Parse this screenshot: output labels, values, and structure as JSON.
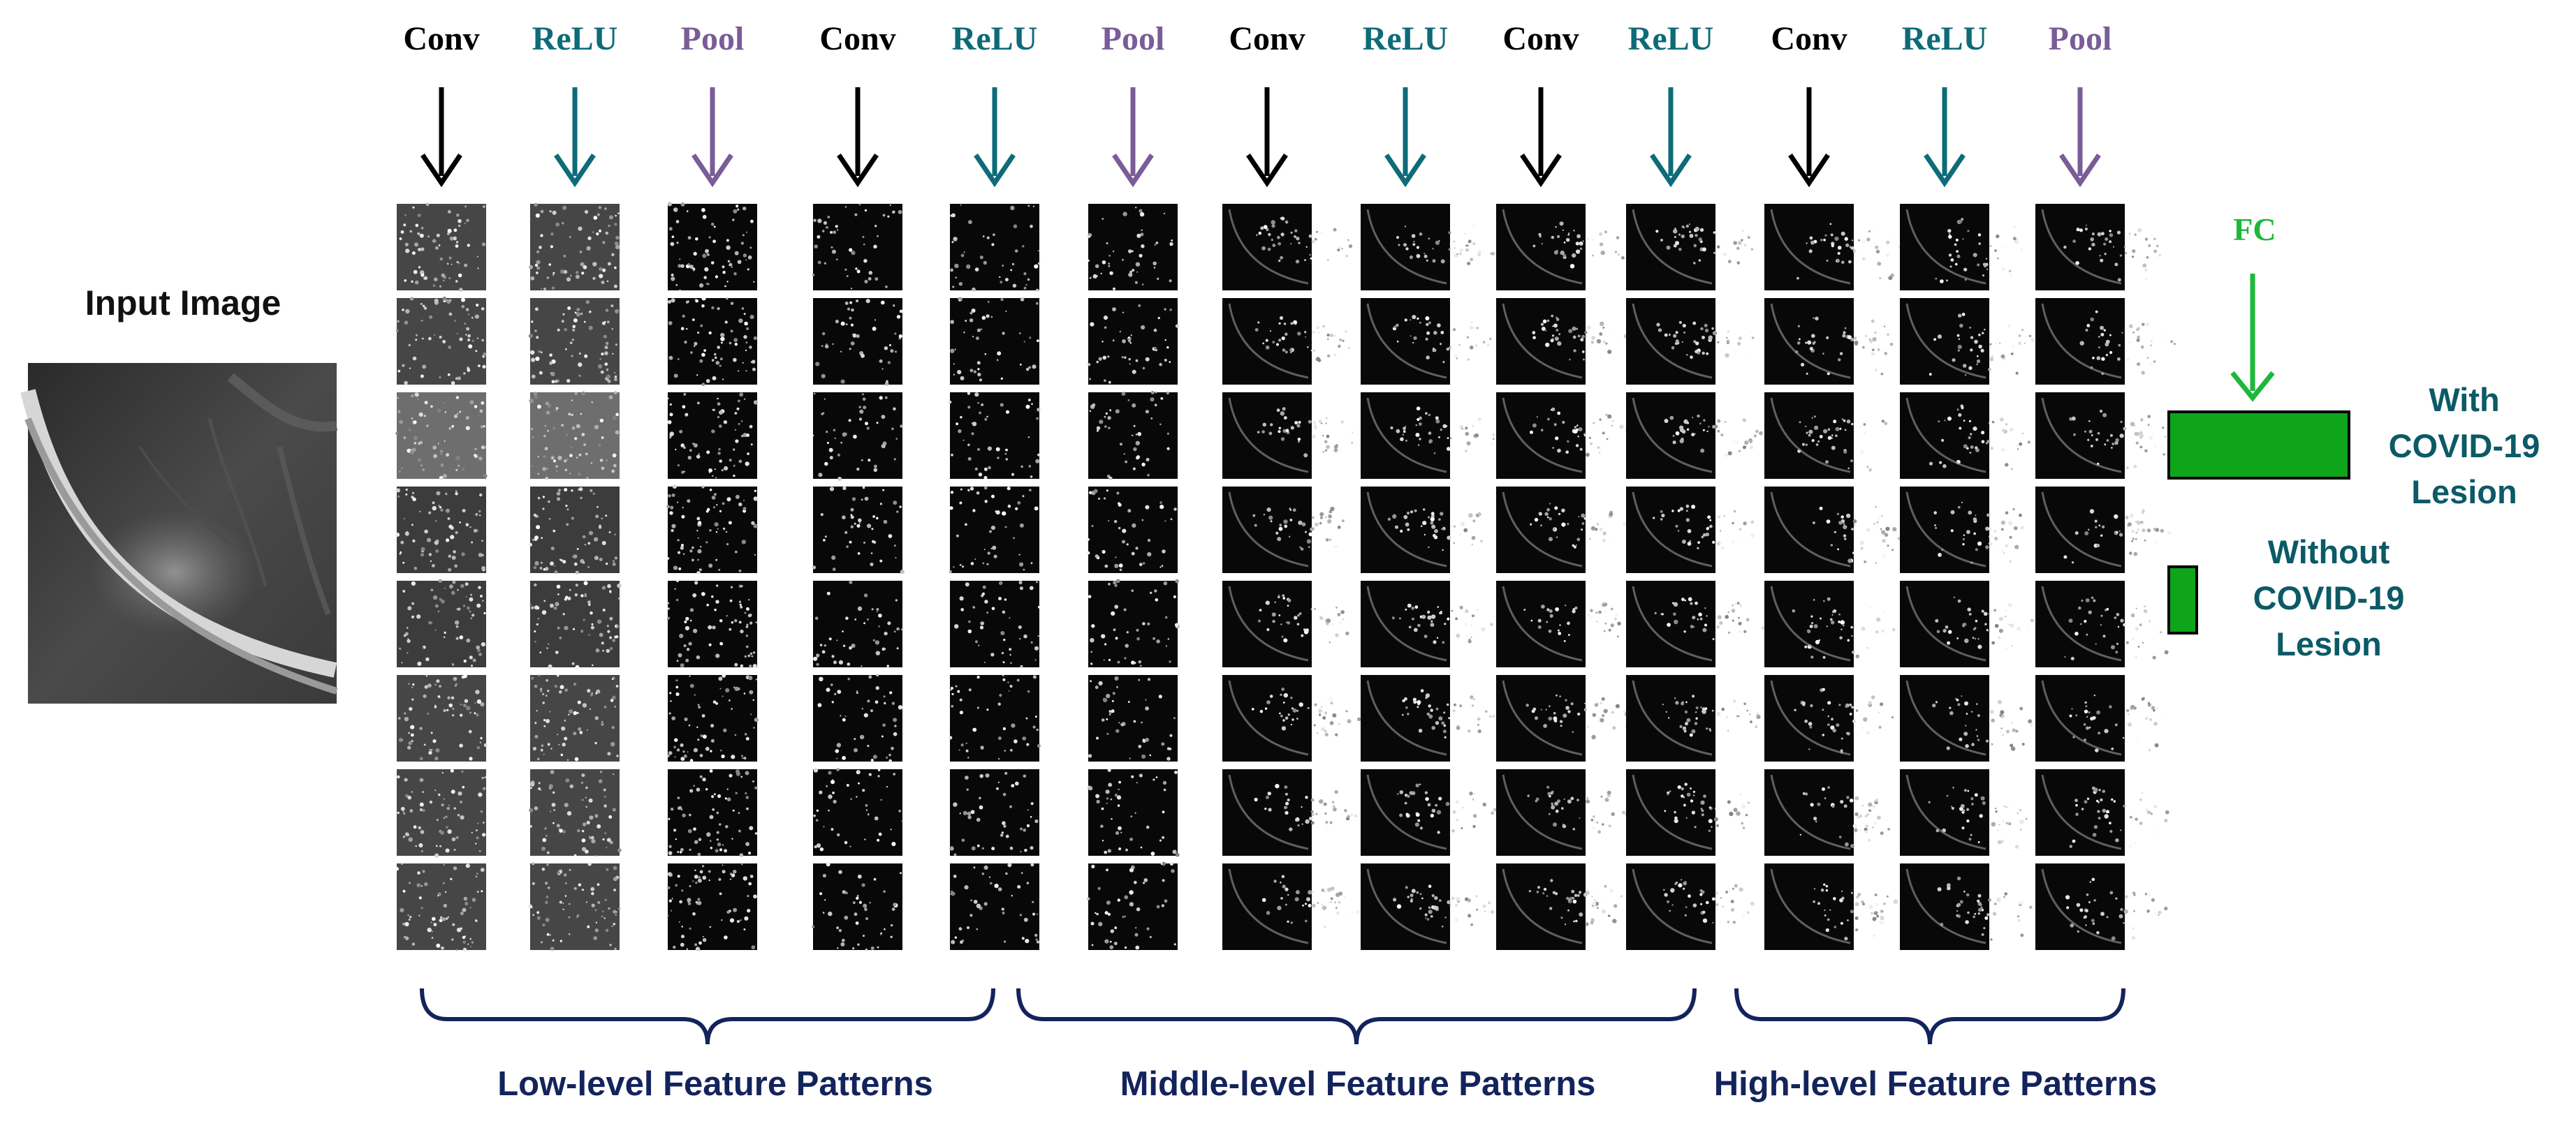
{
  "input": {
    "label": "Input Image"
  },
  "colors": {
    "conv": "#000000",
    "relu": "#0e6b78",
    "pool": "#7a5c99",
    "fc": "#1db83a",
    "navy": "#13235c",
    "teal_text": "#0b5a66",
    "bar_fill": "#0ea51a"
  },
  "layers": [
    {
      "type": "conv",
      "label": "Conv"
    },
    {
      "type": "relu",
      "label": "ReLU"
    },
    {
      "type": "pool",
      "label": "Pool"
    },
    {
      "type": "conv",
      "label": "Conv"
    },
    {
      "type": "relu",
      "label": "ReLU"
    },
    {
      "type": "pool",
      "label": "Pool"
    },
    {
      "type": "conv",
      "label": "Conv"
    },
    {
      "type": "relu",
      "label": "ReLU"
    },
    {
      "type": "conv",
      "label": "Conv"
    },
    {
      "type": "relu",
      "label": "ReLU"
    },
    {
      "type": "conv",
      "label": "Conv"
    },
    {
      "type": "relu",
      "label": "ReLU"
    },
    {
      "type": "pool",
      "label": "Pool"
    }
  ],
  "groups": [
    {
      "label": "Low-level Feature Patterns"
    },
    {
      "label": "Middle-level Feature Patterns"
    },
    {
      "label": "High-level Feature Patterns"
    }
  ],
  "fc": {
    "label": "FC"
  },
  "outputs": {
    "with": {
      "line1": "With",
      "line2": "COVID-19",
      "line3": "Lesion"
    },
    "without": {
      "line1": "Without",
      "line2": "COVID-19",
      "line3": "Lesion"
    }
  }
}
